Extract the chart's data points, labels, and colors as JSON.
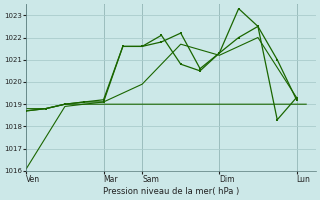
{
  "background_color": "#cce8e8",
  "grid_color": "#aacccc",
  "line_color": "#1a6600",
  "title": "Pression niveau de la mer( hPa )",
  "ylim": [
    1016,
    1023.5
  ],
  "yticks": [
    1016,
    1017,
    1018,
    1019,
    1020,
    1021,
    1022,
    1023
  ],
  "day_labels": [
    "Ven",
    "Mar",
    "Sam",
    "Dim",
    "Lun"
  ],
  "day_positions": [
    0,
    8,
    12,
    20,
    28
  ],
  "xlim": [
    0,
    30
  ],
  "flat_line": {
    "x": [
      0,
      1,
      2,
      3,
      4,
      5,
      6,
      7,
      8,
      9,
      10,
      11,
      12,
      13,
      14,
      15,
      16,
      17,
      18,
      19,
      20,
      21,
      22,
      23,
      24,
      25,
      26,
      27,
      28,
      29
    ],
    "y": [
      1018.8,
      1018.8,
      1018.8,
      1018.9,
      1019.0,
      1019.0,
      1019.0,
      1019.0,
      1019.0,
      1019.0,
      1019.0,
      1019.0,
      1019.0,
      1019.0,
      1019.0,
      1019.0,
      1019.0,
      1019.0,
      1019.0,
      1019.0,
      1019.0,
      1019.0,
      1019.0,
      1019.0,
      1019.0,
      1019.0,
      1019.0,
      1019.0,
      1019.0,
      1019.0
    ]
  },
  "diag_line": {
    "x": [
      0,
      4,
      8,
      12,
      16,
      20,
      24,
      28
    ],
    "y": [
      1016.1,
      1018.9,
      1019.1,
      1019.9,
      1021.7,
      1021.2,
      1022.0,
      1019.3
    ]
  },
  "series_a": {
    "x": [
      0,
      2,
      4,
      6,
      8,
      10,
      12,
      14,
      16,
      18,
      20,
      22,
      24,
      26,
      28
    ],
    "y": [
      1018.7,
      1018.8,
      1019.0,
      1019.1,
      1019.1,
      1021.6,
      1021.6,
      1021.8,
      1022.2,
      1020.6,
      1021.3,
      1023.3,
      1022.5,
      1021.0,
      1019.2
    ]
  },
  "series_b": {
    "x": [
      0,
      2,
      4,
      6,
      8,
      10,
      12,
      14,
      16,
      18,
      20,
      22,
      24,
      26,
      28
    ],
    "y": [
      1018.7,
      1018.8,
      1019.0,
      1019.1,
      1019.2,
      1021.6,
      1021.6,
      1022.1,
      1020.8,
      1020.5,
      1021.3,
      1022.0,
      1022.5,
      1018.3,
      1019.3
    ]
  }
}
